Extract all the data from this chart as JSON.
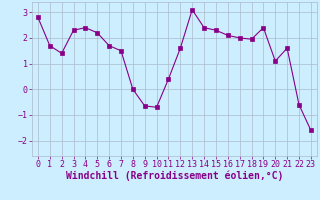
{
  "xlabel": "Windchill (Refroidissement éolien,°C)",
  "x": [
    0,
    1,
    2,
    3,
    4,
    5,
    6,
    7,
    8,
    9,
    10,
    11,
    12,
    13,
    14,
    15,
    16,
    17,
    18,
    19,
    20,
    21,
    22,
    23
  ],
  "y": [
    2.8,
    1.7,
    1.4,
    2.3,
    2.4,
    2.2,
    1.7,
    1.5,
    0.0,
    -0.65,
    -0.7,
    0.4,
    1.6,
    3.1,
    2.4,
    2.3,
    2.1,
    2.0,
    1.95,
    2.4,
    1.1,
    1.6,
    -0.6,
    -1.6
  ],
  "line_color": "#880088",
  "marker": "s",
  "marker_size": 2.5,
  "bg_color": "#cceeff",
  "grid_color": "#aabbcc",
  "xlim": [
    -0.5,
    23.5
  ],
  "ylim": [
    -2.6,
    3.4
  ],
  "yticks": [
    -2,
    -1,
    0,
    1,
    2,
    3
  ],
  "xticks": [
    0,
    1,
    2,
    3,
    4,
    5,
    6,
    7,
    8,
    9,
    10,
    11,
    12,
    13,
    14,
    15,
    16,
    17,
    18,
    19,
    20,
    21,
    22,
    23
  ],
  "tick_label_fontsize": 6,
  "xlabel_fontsize": 7
}
